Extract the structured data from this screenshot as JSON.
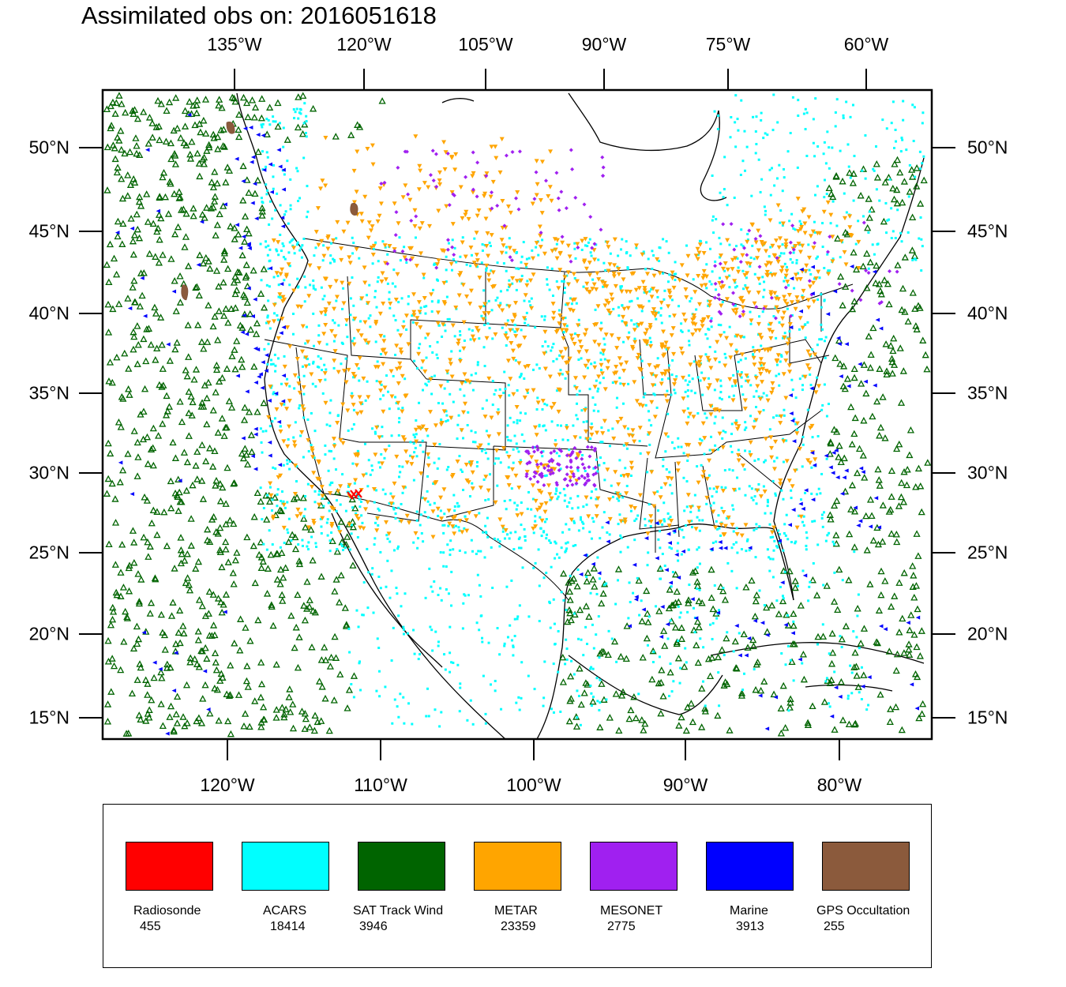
{
  "title": "Assimilated obs on: 2016051618",
  "top_axis_labels": [
    "135°W",
    "120°W",
    "105°W",
    "90°W",
    "75°W",
    "60°W"
  ],
  "bottom_axis_labels": [
    "120°W",
    "110°W",
    "100°W",
    "90°W",
    "80°W"
  ],
  "left_axis_labels": [
    "50°N",
    "45°N",
    "40°N",
    "35°N",
    "30°N",
    "25°N",
    "20°N",
    "15°N"
  ],
  "right_axis_labels": [
    "50°N",
    "45°N",
    "40°N",
    "35°N",
    "30°N",
    "25°N",
    "20°N",
    "15°N"
  ],
  "legend": [
    {
      "label": "Radiosonde",
      "count": "455",
      "color": "#ff0000",
      "marker": "star"
    },
    {
      "label": "ACARS",
      "count": "18414",
      "color": "#00ffff",
      "marker": "dot"
    },
    {
      "label": "SAT Track Wind",
      "count": "3946",
      "color": "#006400",
      "marker": "triangle-up-open"
    },
    {
      "label": "METAR",
      "count": "23359",
      "color": "#ffa500",
      "marker": "triangle-down"
    },
    {
      "label": "MESONET",
      "count": "2775",
      "color": "#a020f0",
      "marker": "diamond"
    },
    {
      "label": "Marine",
      "count": "3913",
      "color": "#0000ff",
      "marker": "triangle-left"
    },
    {
      "label": "GPS Occultation",
      "count": "255",
      "color": "#8b5a3c",
      "marker": "blob"
    }
  ]
}
